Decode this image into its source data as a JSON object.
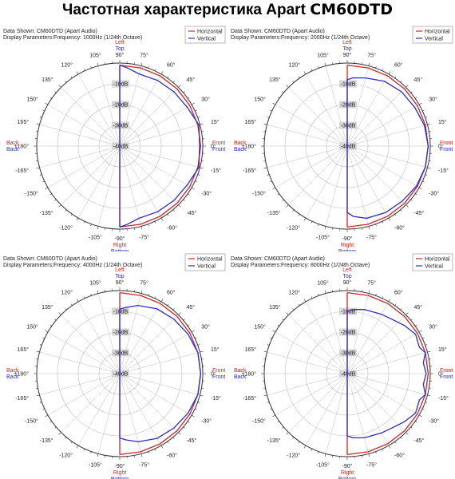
{
  "title": {
    "prefix": "Частотная характеристика Apart ",
    "model": "CM60DTD"
  },
  "colors": {
    "horizontal": "#d92020",
    "vertical": "#2b2bd6",
    "grid": "#bdbdbd",
    "text": "#222222"
  },
  "common": {
    "data_shown_label": "Data Shown:",
    "data_shown_value": "CM60DTD (Apart Audio)",
    "display_params_label": "Display Parameters:",
    "legend": [
      "Horizontal",
      "Vertical"
    ],
    "direction_labels": {
      "left": "Left",
      "top": "Top",
      "right": "Right",
      "bottom": "Bottom",
      "front_h": "Front",
      "front_v": "Front",
      "back_h": "Back",
      "back_v": "Back"
    },
    "db_labels": [
      "-10dB",
      "-20dB",
      "-30dB",
      "-40dB"
    ],
    "angle_labels": [
      "0°",
      "15°",
      "30°",
      "45°",
      "60°",
      "75°",
      "90°",
      "105°",
      "120°",
      "135°",
      "150°",
      "165°",
      "±180°",
      "-165°",
      "-150°",
      "-135°",
      "-120°",
      "-105°",
      "-90°",
      "-75°",
      "-60°",
      "-45°",
      "-30°",
      "-15°"
    ]
  },
  "chart_data": [
    {
      "type": "polar",
      "frequency": "Frequency: 1000Hz (1/24th Octave)",
      "rlim": [
        -40,
        0
      ],
      "series": [
        {
          "name": "Horizontal",
          "angles": [
            -90,
            -75,
            -60,
            -45,
            -30,
            -15,
            0,
            15,
            30,
            45,
            60,
            75,
            90
          ],
          "values": [
            -1,
            -1,
            -1,
            -1,
            -1,
            -1,
            -1,
            -1,
            -1,
            -1,
            -1,
            -1,
            -1
          ]
        },
        {
          "name": "Vertical",
          "angles": [
            -90,
            -85,
            -75,
            -60,
            -45,
            -30,
            -15,
            -5,
            0,
            5,
            15,
            30,
            45,
            60,
            75,
            85,
            90
          ],
          "values": [
            -1,
            -2,
            -4,
            -3.5,
            -3,
            -2.5,
            -0.5,
            -1.5,
            -1.5,
            -1.5,
            -0.5,
            -2.5,
            -3,
            -3.5,
            -4,
            -2,
            -1
          ]
        }
      ]
    },
    {
      "type": "polar",
      "frequency": "Frequency: 2000Hz (1/24th Octave)",
      "rlim": [
        -40,
        0
      ],
      "series": [
        {
          "name": "Horizontal",
          "angles": [
            -90,
            -75,
            -60,
            -45,
            -30,
            -15,
            0,
            15,
            30,
            45,
            60,
            75,
            90
          ],
          "values": [
            -1,
            -1,
            -1,
            -1,
            -1,
            -1,
            -1,
            -1,
            -1,
            -1,
            -1,
            -1,
            -1
          ]
        },
        {
          "name": "Vertical",
          "angles": [
            -90,
            -85,
            -75,
            -60,
            -45,
            -30,
            -15,
            0,
            15,
            30,
            45,
            60,
            75,
            85,
            90
          ],
          "values": [
            -8,
            -6,
            -4,
            -3,
            -2.5,
            -1.5,
            -1,
            -1,
            -1.5,
            -2.5,
            -3,
            -4,
            -6,
            -7,
            -8
          ]
        }
      ]
    },
    {
      "type": "polar",
      "frequency": "Frequency: 4000Hz (1/24th Octave)",
      "rlim": [
        -40,
        0
      ],
      "series": [
        {
          "name": "Horizontal",
          "angles": [
            -90,
            -75,
            -60,
            -45,
            -30,
            -15,
            0,
            15,
            30,
            45,
            60,
            75,
            90
          ],
          "values": [
            -1,
            -1,
            -1,
            -1,
            -1,
            -1,
            -1,
            -1,
            -1,
            -1,
            -1,
            -1,
            -1
          ]
        },
        {
          "name": "Vertical",
          "angles": [
            -90,
            -85,
            -75,
            -60,
            -45,
            -30,
            -15,
            0,
            15,
            30,
            45,
            60,
            75,
            85,
            90
          ],
          "values": [
            -9,
            -8,
            -6,
            -4,
            -3,
            -2,
            -1,
            -1,
            -1,
            -2,
            -3,
            -4,
            -6,
            -8,
            -9
          ]
        }
      ]
    },
    {
      "type": "polar",
      "frequency": "Frequency: 8000Hz (1/24th Octave)",
      "rlim": [
        -40,
        0
      ],
      "series": [
        {
          "name": "Horizontal",
          "angles": [
            -90,
            -75,
            -60,
            -45,
            -30,
            -15,
            0,
            15,
            30,
            45,
            60,
            75,
            90
          ],
          "values": [
            -1,
            -1,
            -1,
            -1,
            -1,
            -1,
            -1,
            -1,
            -1,
            -1,
            -1,
            -1,
            -1
          ]
        },
        {
          "name": "Vertical",
          "angles": [
            -90,
            -85,
            -75,
            -60,
            -50,
            -40,
            -30,
            -20,
            -15,
            -8,
            0,
            8,
            15,
            20,
            30,
            40,
            50,
            60,
            75,
            85,
            90
          ],
          "values": [
            -10,
            -9,
            -8,
            -7,
            -6,
            -4,
            -2,
            -3,
            -1,
            -3,
            -2,
            -3,
            -1,
            -3,
            -2,
            -4,
            -6,
            -7,
            -8,
            -9,
            -10
          ]
        }
      ]
    }
  ]
}
